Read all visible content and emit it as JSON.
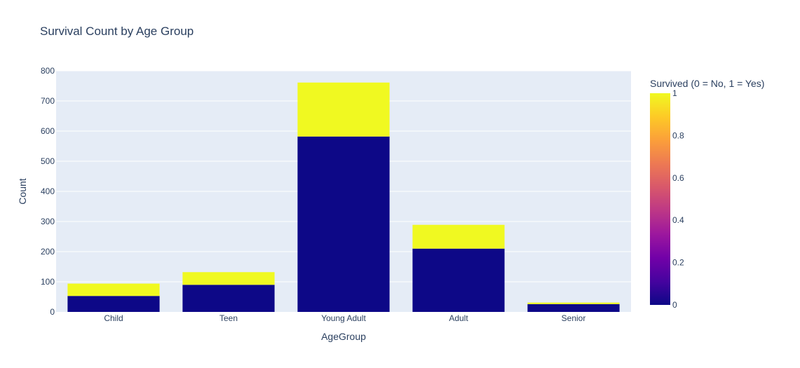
{
  "chart_data": {
    "type": "bar",
    "stacked": true,
    "title": "Survival Count by Age Group",
    "xlabel": "AgeGroup",
    "ylabel": "Count",
    "ylim": [
      0,
      800
    ],
    "yticks": [
      0,
      100,
      200,
      300,
      400,
      500,
      600,
      700,
      800
    ],
    "grid": true,
    "categories": [
      "Child",
      "Teen",
      "Young Adult",
      "Adult",
      "Senior"
    ],
    "series": [
      {
        "survived": 0,
        "color": "#0d0887",
        "values": [
          53,
          90,
          582,
          210,
          26
        ]
      },
      {
        "survived": 1,
        "color": "#f0f921",
        "values": [
          41,
          42,
          179,
          79,
          5
        ]
      }
    ],
    "colorbar": {
      "title": "Survived (0 = No, 1 = Yes)",
      "range": [
        0,
        1
      ],
      "ticks": [
        "0",
        "0.2",
        "0.4",
        "0.6",
        "0.8",
        "1"
      ],
      "colorscale": [
        "#0d0887",
        "#46039f",
        "#7201a8",
        "#9c179e",
        "#bd3786",
        "#d8576b",
        "#ed7953",
        "#fb9f3a",
        "#fdca26",
        "#f0f921"
      ]
    },
    "plot_background": "#e5ecf6"
  }
}
